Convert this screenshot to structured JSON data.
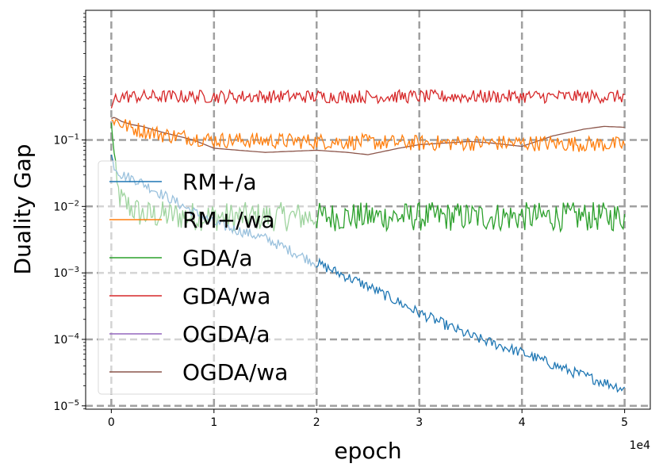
{
  "chart_data": {
    "type": "line",
    "xlabel": "epoch",
    "ylabel": "Duality Gap",
    "x_offset_label": "1e4",
    "xlim": [
      -2500,
      52500
    ],
    "ylim_log10": [
      -5.05,
      0.95
    ],
    "y_scale": "log",
    "grid": true,
    "legend_location": "lower-left",
    "x_ticks": [
      {
        "value": 0,
        "label": "0"
      },
      {
        "value": 10000,
        "label": "1"
      },
      {
        "value": 20000,
        "label": "2"
      },
      {
        "value": 30000,
        "label": "3"
      },
      {
        "value": 40000,
        "label": "4"
      },
      {
        "value": 50000,
        "label": "5"
      }
    ],
    "y_ticks": [
      {
        "exp": -1,
        "base": "10",
        "sup": "−1"
      },
      {
        "exp": -2,
        "base": "10",
        "sup": "−2"
      },
      {
        "exp": -3,
        "base": "10",
        "sup": "−3"
      },
      {
        "exp": -4,
        "base": "10",
        "sup": "−4"
      },
      {
        "exp": -5,
        "base": "10",
        "sup": "−5"
      }
    ],
    "series": [
      {
        "name": "RM+/a",
        "color": "#1f77b4",
        "x": [
          0,
          300,
          1000,
          2500,
          5000,
          10000,
          15000,
          20000,
          25000,
          30000,
          35000,
          40000,
          45000,
          50000
        ],
        "y": [
          0.06,
          0.04,
          0.03,
          0.025,
          0.015,
          0.0056,
          0.0033,
          0.0014,
          0.00063,
          0.00025,
          0.000112,
          6.3e-05,
          3.2e-05,
          1.8e-05
        ],
        "noise": 0.08
      },
      {
        "name": "RM+/wa",
        "color": "#ff7f0e",
        "x": [
          0,
          500,
          2000,
          5000,
          10000,
          20000,
          30000,
          40000,
          50000
        ],
        "y": [
          0.2,
          0.19,
          0.15,
          0.12,
          0.1,
          0.095,
          0.09,
          0.09,
          0.085
        ],
        "noise": 0.12
      },
      {
        "name": "GDA/a",
        "color": "#2ca02c",
        "x": [
          0,
          100,
          300,
          500,
          1000,
          3000,
          10000,
          50000
        ],
        "y": [
          0.18,
          0.12,
          0.05,
          0.02,
          0.012,
          0.0075,
          0.007,
          0.007
        ],
        "noise": 0.22
      },
      {
        "name": "GDA/wa",
        "color": "#d62728",
        "x": [
          0,
          300,
          1000,
          50000
        ],
        "y": [
          0.3,
          0.42,
          0.45,
          0.45
        ],
        "noise": 0.1
      },
      {
        "name": "OGDA/a",
        "color": "#9467bd",
        "x": [],
        "y": [],
        "noise": 0
      },
      {
        "name": "OGDA/wa",
        "color": "#8c564b",
        "x": [
          0,
          300,
          1000,
          2000,
          3000,
          5000,
          8000,
          10000,
          15000,
          20000,
          23000,
          25000,
          28000,
          30000,
          35000,
          37000,
          40000,
          43000,
          46000,
          48000,
          50000
        ],
        "y": [
          0.21,
          0.22,
          0.19,
          0.17,
          0.16,
          0.13,
          0.1,
          0.075,
          0.065,
          0.07,
          0.065,
          0.06,
          0.075,
          0.085,
          0.095,
          0.09,
          0.08,
          0.115,
          0.145,
          0.16,
          0.155
        ],
        "noise": 0
      }
    ]
  }
}
